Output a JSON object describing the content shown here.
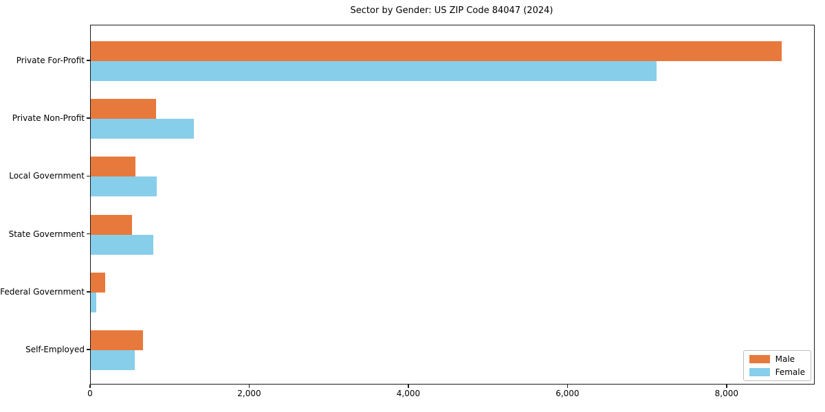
{
  "chart_data": {
    "type": "bar",
    "orientation": "horizontal",
    "title": "Sector by Gender: US ZIP Code 84047 (2024)",
    "categories": [
      "Private For-Profit",
      "Private Non-Profit",
      "Local Government",
      "State Government",
      "Federal Government",
      "Self-Employed"
    ],
    "series": [
      {
        "name": "Male",
        "color": "#E8793C",
        "values": [
          8680,
          820,
          560,
          520,
          180,
          660
        ]
      },
      {
        "name": "Female",
        "color": "#87CEEB",
        "values": [
          7110,
          1300,
          830,
          790,
          70,
          550
        ]
      }
    ],
    "xlabel": "",
    "ylabel": "",
    "xlim": [
      0,
      9090
    ],
    "x_ticks": [
      0,
      2000,
      4000,
      6000,
      8000
    ],
    "x_tick_labels": [
      "0",
      "2,000",
      "4,000",
      "6,000",
      "8,000"
    ],
    "grid": false,
    "legend": {
      "position": "lower right"
    }
  }
}
